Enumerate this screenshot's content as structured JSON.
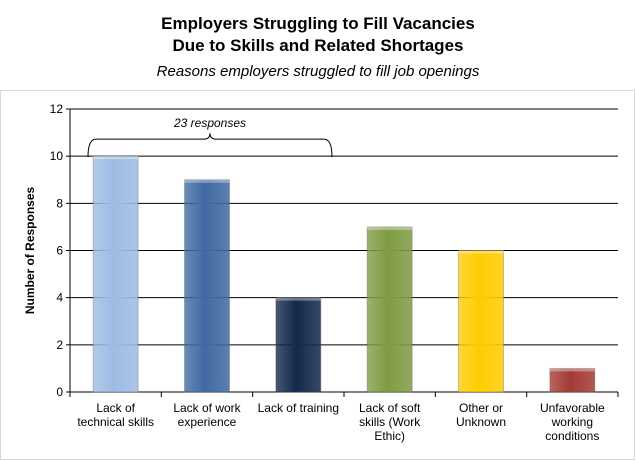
{
  "chart_data": {
    "type": "bar",
    "title_lines": [
      "Employers Struggling to Fill Vacancies",
      "Due to Skills and Related Shortages"
    ],
    "subtitle": "Reasons employers struggled to fill job openings",
    "xlabel": "",
    "ylabel": "Number of Responses",
    "ylim": [
      0,
      12
    ],
    "yticks": [
      0,
      2,
      4,
      6,
      8,
      10,
      12
    ],
    "grid": true,
    "legend": "none",
    "categories": [
      [
        "Lack of",
        "technical skills"
      ],
      [
        "Lack of work",
        "experience"
      ],
      [
        "Lack of training"
      ],
      [
        "Lack of soft",
        "skills (Work",
        "Ethic)"
      ],
      [
        "Other or",
        "Unknown"
      ],
      [
        "Unfavorable",
        "working",
        "conditions"
      ]
    ],
    "values": [
      10,
      9,
      4,
      7,
      6,
      1
    ],
    "colors": [
      "#9dbbe3",
      "#3f6aa2",
      "#13284a",
      "#7e9c42",
      "#ffcc00",
      "#a33a34"
    ],
    "annotation": {
      "text": "23 responses",
      "spans_categories": [
        0,
        2
      ],
      "level": 10
    }
  }
}
